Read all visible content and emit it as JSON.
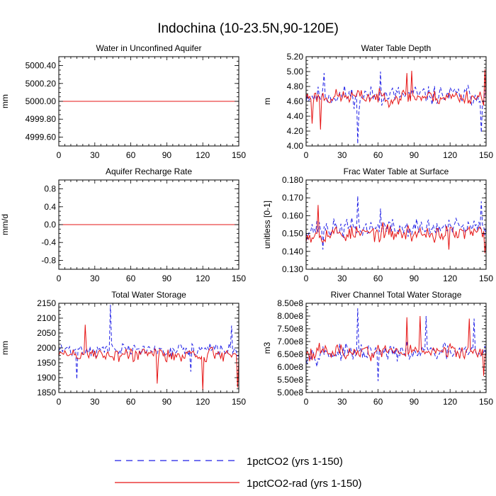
{
  "title": "Indochina (10-23.5N,90-120E)",
  "colors": {
    "series1": "#1f1fe6",
    "series2": "#e61414",
    "axis": "#000000"
  },
  "legend": {
    "placement": "bottom-center",
    "items": [
      {
        "label": "1pctCO2 (yrs 1-150)",
        "color": "#1f1fe6",
        "dash": "dashed"
      },
      {
        "label": "1pctCO2-rad (yrs 1-150)",
        "color": "#e61414",
        "dash": "solid"
      }
    ]
  },
  "chart_data": [
    {
      "type": "line",
      "title": "Water in Unconfined Aquifer",
      "ylabel": "mm",
      "xlim": [
        0,
        150
      ],
      "ylim": [
        4999.5,
        5000.5
      ],
      "xticks": [
        0,
        30,
        60,
        90,
        120,
        150
      ],
      "xtick_labels": [
        "0",
        "30",
        "60",
        "90",
        "120",
        "150"
      ],
      "yticks": [
        4999.6,
        4999.8,
        5000.0,
        5000.2,
        5000.4
      ],
      "ytick_labels": [
        "4999.60",
        "4999.80",
        "5000.00",
        "5000.20",
        "5000.40"
      ],
      "series": [
        {
          "name": "1pctCO2 (yrs 1-150)",
          "kind": "constant",
          "value": 5000.0
        },
        {
          "name": "1pctCO2-rad (yrs 1-150)",
          "kind": "constant",
          "value": 5000.0
        }
      ]
    },
    {
      "type": "line",
      "title": "Water Table Depth",
      "ylabel": "m",
      "xlim": [
        0,
        150
      ],
      "ylim": [
        4.0,
        5.2
      ],
      "xticks": [
        0,
        30,
        60,
        90,
        120,
        150
      ],
      "xtick_labels": [
        "0",
        "30",
        "60",
        "90",
        "120",
        "150"
      ],
      "yticks": [
        4.0,
        4.2,
        4.4,
        4.6,
        4.8,
        5.0,
        5.2
      ],
      "ytick_labels": [
        "4.00",
        "4.20",
        "4.40",
        "4.60",
        "4.80",
        "5.00",
        "5.20"
      ],
      "series": [
        {
          "name": "1pctCO2 (yrs 1-150)",
          "kind": "noise",
          "mean": 4.68,
          "amp": 0.22,
          "seed": 11,
          "spikes": [
            [
              43,
              4.03
            ],
            [
              44,
              4.45
            ],
            [
              15,
              4.98
            ],
            [
              62,
              5.0
            ],
            [
              146,
              4.18
            ]
          ]
        },
        {
          "name": "1pctCO2-rad (yrs 1-150)",
          "kind": "noise",
          "mean": 4.66,
          "amp": 0.17,
          "seed": 23,
          "spikes": [
            [
              5,
              4.3
            ],
            [
              12,
              4.22
            ],
            [
              84,
              4.98
            ],
            [
              88,
              5.01
            ],
            [
              149,
              5.03
            ]
          ]
        }
      ]
    },
    {
      "type": "line",
      "title": "Aquifer Recharge Rate",
      "ylabel": "mm/d",
      "xlim": [
        0,
        150
      ],
      "ylim": [
        -1.0,
        1.0
      ],
      "xticks": [
        0,
        30,
        60,
        90,
        120,
        150
      ],
      "xtick_labels": [
        "0",
        "30",
        "60",
        "90",
        "120",
        "150"
      ],
      "yticks": [
        -0.8,
        -0.4,
        0.0,
        0.4,
        0.8
      ],
      "ytick_labels": [
        "-0.8",
        "-0.4",
        "0.0",
        "0.4",
        "0.8"
      ],
      "series": [
        {
          "name": "1pctCO2 (yrs 1-150)",
          "kind": "constant",
          "value": 0.0
        },
        {
          "name": "1pctCO2-rad (yrs 1-150)",
          "kind": "constant",
          "value": 0.0
        }
      ]
    },
    {
      "type": "line",
      "title": "Frac Water Table at Surface",
      "ylabel": "unitless [0-1]",
      "xlim": [
        0,
        150
      ],
      "ylim": [
        0.13,
        0.18
      ],
      "xticks": [
        0,
        30,
        60,
        90,
        120,
        150
      ],
      "xtick_labels": [
        "0",
        "30",
        "60",
        "90",
        "120",
        "150"
      ],
      "yticks": [
        0.13,
        0.14,
        0.15,
        0.16,
        0.17,
        0.18
      ],
      "ytick_labels": [
        "0.130",
        "0.140",
        "0.150",
        "0.160",
        "0.170",
        "0.180"
      ],
      "series": [
        {
          "name": "1pctCO2 (yrs 1-150)",
          "kind": "noise",
          "mean": 0.153,
          "amp": 0.009,
          "seed": 37,
          "spikes": [
            [
              43,
              0.171
            ],
            [
              62,
              0.164
            ],
            [
              146,
              0.168
            ],
            [
              14,
              0.141
            ]
          ]
        },
        {
          "name": "1pctCO2-rad (yrs 1-150)",
          "kind": "noise",
          "mean": 0.15,
          "amp": 0.008,
          "seed": 53,
          "spikes": [
            [
              10,
              0.166
            ],
            [
              4,
              0.145
            ],
            [
              119,
              0.141
            ],
            [
              149,
              0.139
            ]
          ]
        }
      ]
    },
    {
      "type": "line",
      "title": "Total Water Storage",
      "ylabel": "mm",
      "xlim": [
        0,
        150
      ],
      "ylim": [
        1850,
        2150
      ],
      "xticks": [
        0,
        30,
        60,
        90,
        120,
        150
      ],
      "xtick_labels": [
        "0",
        "30",
        "60",
        "90",
        "120",
        "150"
      ],
      "yticks": [
        1850,
        1900,
        1950,
        2000,
        2050,
        2100,
        2150
      ],
      "ytick_labels": [
        "1850",
        "1900",
        "1950",
        "2000",
        "2050",
        "2100",
        "2150"
      ],
      "series": [
        {
          "name": "1pctCO2 (yrs 1-150)",
          "kind": "noise",
          "mean": 1993,
          "amp": 38,
          "seed": 71,
          "spikes": [
            [
              43,
              2145
            ],
            [
              15,
              1895
            ],
            [
              144,
              2075
            ],
            [
              110,
              1920
            ]
          ]
        },
        {
          "name": "1pctCO2-rad (yrs 1-150)",
          "kind": "noise",
          "mean": 1978,
          "amp": 45,
          "seed": 89,
          "spikes": [
            [
              22,
              2078
            ],
            [
              120,
              1857
            ],
            [
              149,
              1867
            ],
            [
              82,
              1880
            ]
          ]
        }
      ]
    },
    {
      "type": "line",
      "title": "River Channel Total Water Storage",
      "ylabel": "m3",
      "xlim": [
        0,
        150
      ],
      "ylim": [
        500000000,
        850000000
      ],
      "xticks": [
        0,
        30,
        60,
        90,
        120,
        150
      ],
      "xtick_labels": [
        "0",
        "30",
        "60",
        "90",
        "120",
        "150"
      ],
      "yticks": [
        500000000,
        550000000,
        600000000,
        650000000,
        700000000,
        750000000,
        800000000,
        850000000
      ],
      "ytick_labels": [
        "5.00e8",
        "5.50e8",
        "6.00e8",
        "6.50e8",
        "7.00e8",
        "7.50e8",
        "8.00e8",
        "8.50e8"
      ],
      "series": [
        {
          "name": "1pctCO2 (yrs 1-150)",
          "kind": "noise",
          "mean": 655000000,
          "amp": 55000000,
          "seed": 97,
          "spikes": [
            [
              43,
              830000000
            ],
            [
              100,
              800000000
            ],
            [
              140,
              790000000
            ],
            [
              60,
              545000000
            ]
          ]
        },
        {
          "name": "1pctCO2-rad (yrs 1-150)",
          "kind": "noise",
          "mean": 660000000,
          "amp": 50000000,
          "seed": 113,
          "spikes": [
            [
              84,
              795000000
            ],
            [
              95,
              800000000
            ],
            [
              136,
              790000000
            ],
            [
              148,
              565000000
            ]
          ]
        }
      ]
    }
  ]
}
